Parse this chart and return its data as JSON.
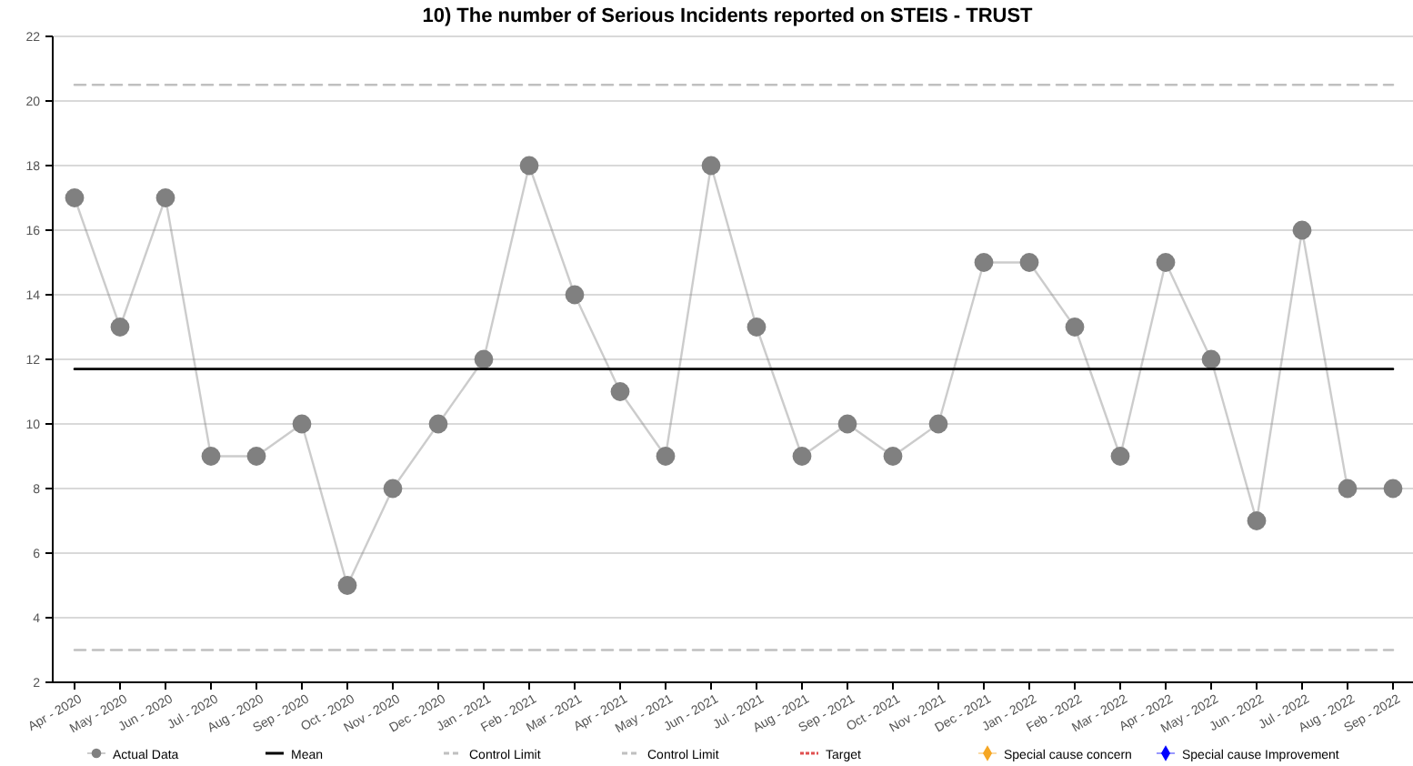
{
  "chart_data": {
    "type": "line",
    "title": "10) The number of Serious Incidents reported on STEIS - TRUST",
    "categories": [
      "Apr - 2020",
      "May - 2020",
      "Jun - 2020",
      "Jul - 2020",
      "Aug - 2020",
      "Sep - 2020",
      "Oct - 2020",
      "Nov - 2020",
      "Dec - 2020",
      "Jan - 2021",
      "Feb - 2021",
      "Mar - 2021",
      "Apr - 2021",
      "May - 2021",
      "Jun - 2021",
      "Jul - 2021",
      "Aug - 2021",
      "Sep - 2021",
      "Oct - 2021",
      "Nov - 2021",
      "Dec - 2021",
      "Jan - 2022",
      "Feb - 2022",
      "Mar - 2022",
      "Apr - 2022",
      "May - 2022",
      "Jun - 2022",
      "Jul - 2022",
      "Aug - 2022",
      "Sep - 2022"
    ],
    "series": [
      {
        "name": "Actual Data",
        "color": "#808080",
        "marker": "circle",
        "values": [
          17,
          13,
          17,
          9,
          9,
          10,
          5,
          8,
          10,
          12,
          18,
          14,
          11,
          9,
          18,
          13,
          9,
          10,
          9,
          10,
          15,
          15,
          13,
          9,
          15,
          12,
          7,
          16,
          8,
          8
        ]
      },
      {
        "name": "Mean",
        "color": "#000000",
        "marker": "none",
        "values": [
          11.7,
          11.7,
          11.7,
          11.7,
          11.7,
          11.7,
          11.7,
          11.7,
          11.7,
          11.7,
          11.7,
          11.7,
          11.7,
          11.7,
          11.7,
          11.7,
          11.7,
          11.7,
          11.7,
          11.7,
          11.7,
          11.7,
          11.7,
          11.7,
          11.7,
          11.7,
          11.7,
          11.7,
          11.7,
          11.7
        ]
      },
      {
        "name": "Control Limit",
        "color": "#c0c0c0",
        "marker": "none",
        "line_style": "dashed",
        "values": [
          20.5,
          20.5,
          20.5,
          20.5,
          20.5,
          20.5,
          20.5,
          20.5,
          20.5,
          20.5,
          20.5,
          20.5,
          20.5,
          20.5,
          20.5,
          20.5,
          20.5,
          20.5,
          20.5,
          20.5,
          20.5,
          20.5,
          20.5,
          20.5,
          20.5,
          20.5,
          20.5,
          20.5,
          20.5,
          20.5
        ]
      },
      {
        "name": "Control Limit",
        "color": "#c0c0c0",
        "marker": "none",
        "line_style": "dashed",
        "values": [
          3,
          3,
          3,
          3,
          3,
          3,
          3,
          3,
          3,
          3,
          3,
          3,
          3,
          3,
          3,
          3,
          3,
          3,
          3,
          3,
          3,
          3,
          3,
          3,
          3,
          3,
          3,
          3,
          3,
          3
        ]
      },
      {
        "name": "Target",
        "color": "#e05050",
        "marker": "none",
        "line_style": "dotted",
        "values": [
          null,
          null,
          null,
          null,
          null,
          null,
          null,
          null,
          null,
          null,
          null,
          null,
          null,
          null,
          null,
          null,
          null,
          null,
          null,
          null,
          null,
          null,
          null,
          null,
          null,
          null,
          null,
          null,
          null,
          null
        ]
      },
      {
        "name": "Special cause concern",
        "color": "#f5a623",
        "marker": "diamond",
        "values": [
          null,
          null,
          null,
          null,
          null,
          null,
          null,
          null,
          null,
          null,
          null,
          null,
          null,
          null,
          null,
          null,
          null,
          null,
          null,
          null,
          null,
          null,
          null,
          null,
          null,
          null,
          null,
          null,
          null,
          null
        ]
      },
      {
        "name": "Special cause Improvement",
        "color": "#0000ff",
        "marker": "diamond",
        "values": [
          null,
          null,
          null,
          null,
          null,
          null,
          null,
          null,
          null,
          null,
          null,
          null,
          null,
          null,
          null,
          null,
          null,
          null,
          null,
          null,
          null,
          null,
          null,
          null,
          null,
          null,
          null,
          null,
          null,
          null
        ]
      }
    ],
    "ylim": [
      2,
      22
    ],
    "yticks": [
      2,
      4,
      6,
      8,
      10,
      12,
      14,
      16,
      18,
      20,
      22
    ],
    "grid": "y",
    "legend": "bottom"
  }
}
